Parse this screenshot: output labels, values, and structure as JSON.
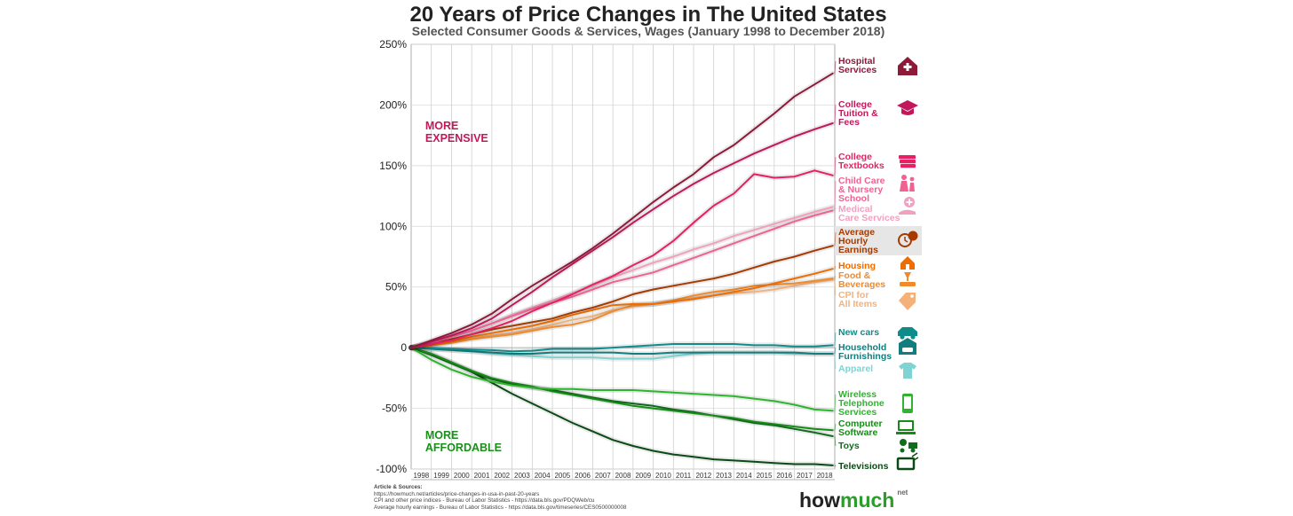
{
  "chart_data": {
    "type": "line",
    "title": "20 Years of Price Changes in The United States",
    "subtitle": "Selected Consumer Goods & Services, Wages (January 1998 to December 2018)",
    "xlabel": "",
    "ylabel": "",
    "x_ticks": [
      "1998",
      "1999",
      "2000",
      "2001",
      "2002",
      "2003",
      "2004",
      "2005",
      "2006",
      "2007",
      "2008",
      "2009",
      "2010",
      "2011",
      "2012",
      "2013",
      "2014",
      "2015",
      "2016",
      "2017",
      "2018"
    ],
    "x_range": [
      1998,
      2019
    ],
    "y_ticks": [
      {
        "value": 250,
        "label": "250%"
      },
      {
        "value": 200,
        "label": "200%"
      },
      {
        "value": 150,
        "label": "150%"
      },
      {
        "value": 100,
        "label": "100%"
      },
      {
        "value": 50,
        "label": "50%"
      },
      {
        "value": 0,
        "label": "0"
      },
      {
        "value": -50,
        "label": "-50%"
      },
      {
        "value": -100,
        "label": "-100%"
      }
    ],
    "ylim": [
      -100,
      250
    ],
    "grid": true,
    "annotations": [
      {
        "lines": [
          "MORE",
          "EXPENSIVE"
        ],
        "color": "#c2185b",
        "x": 1998.7,
        "y": 180
      },
      {
        "lines": [
          "MORE",
          "AFFORDABLE"
        ],
        "color": "#1a8f1a",
        "x": 1998.7,
        "y": -75
      }
    ],
    "series": [
      {
        "name": "Hospital Services",
        "label_lines": [
          "Hospital",
          "Services"
        ],
        "icon": "hospital-icon",
        "color": "#8e1a3a",
        "x": [
          1998,
          1999,
          2000,
          2001,
          2002,
          2003,
          2004,
          2005,
          2006,
          2007,
          2008,
          2009,
          2010,
          2011,
          2012,
          2013,
          2014,
          2015,
          2016,
          2017,
          2018,
          2018.9
        ],
        "values": [
          0,
          6,
          12,
          19,
          28,
          40,
          51,
          61,
          71,
          82,
          94,
          107,
          120,
          132,
          143,
          157,
          167,
          180,
          193,
          207,
          217,
          226
        ]
      },
      {
        "name": "College Tuition & Fees",
        "label_lines": [
          "College",
          "Tuition &",
          "Fees"
        ],
        "icon": "graduation-cap-icon",
        "color": "#c2185b",
        "x": [
          1998,
          1999,
          2000,
          2001,
          2002,
          2003,
          2004,
          2005,
          2006,
          2007,
          2008,
          2009,
          2010,
          2011,
          2012,
          2013,
          2014,
          2015,
          2016,
          2017,
          2018,
          2018.9
        ],
        "values": [
          0,
          5,
          10,
          16,
          24,
          35,
          46,
          58,
          69,
          80,
          91,
          103,
          114,
          125,
          135,
          144,
          152,
          160,
          167,
          174,
          180,
          185
        ]
      },
      {
        "name": "College Textbooks",
        "label_lines": [
          "College",
          "Textbooks"
        ],
        "icon": "books-icon",
        "color": "#e91e63",
        "x": [
          1998,
          1999,
          2000,
          2001,
          2002,
          2003,
          2004,
          2005,
          2006,
          2007,
          2008,
          2009,
          2010,
          2011,
          2012,
          2013,
          2014,
          2015,
          2016,
          2017,
          2018,
          2018.9
        ],
        "values": [
          0,
          3,
          6,
          11,
          16,
          22,
          30,
          37,
          44,
          52,
          59,
          68,
          76,
          88,
          103,
          117,
          127,
          143,
          140,
          141,
          146,
          142
        ]
      },
      {
        "name": "Child Care & Nursery School",
        "label_lines": [
          "Child Care",
          "& Nursery",
          "School"
        ],
        "icon": "family-icon",
        "color": "#f06292",
        "x": [
          1998,
          1999,
          2000,
          2001,
          2002,
          2003,
          2004,
          2005,
          2006,
          2007,
          2008,
          2009,
          2010,
          2011,
          2012,
          2013,
          2014,
          2015,
          2016,
          2017,
          2018,
          2018.9
        ],
        "values": [
          0,
          4,
          9,
          14,
          20,
          26,
          32,
          37,
          42,
          48,
          54,
          58,
          62,
          68,
          74,
          80,
          86,
          92,
          98,
          104,
          109,
          113
        ]
      },
      {
        "name": "Medical Care Services",
        "label_lines": [
          "Medical",
          "Care Services"
        ],
        "icon": "medical-hand-icon",
        "color": "#f2a0c0",
        "x": [
          1998,
          1999,
          2000,
          2001,
          2002,
          2003,
          2004,
          2005,
          2006,
          2007,
          2008,
          2009,
          2010,
          2011,
          2012,
          2013,
          2014,
          2015,
          2016,
          2017,
          2018,
          2018.9
        ],
        "values": [
          0,
          4,
          9,
          14,
          20,
          27,
          33,
          39,
          45,
          51,
          58,
          64,
          70,
          75,
          81,
          86,
          92,
          97,
          102,
          107,
          112,
          116
        ]
      },
      {
        "name": "Average Hourly Earnings",
        "label_lines": [
          "Average",
          "Hourly",
          "Earnings"
        ],
        "icon": "clock-dollar-icon",
        "color": "#a63a00",
        "x": [
          1998,
          1999,
          2000,
          2001,
          2002,
          2003,
          2004,
          2005,
          2006,
          2007,
          2008,
          2009,
          2010,
          2011,
          2012,
          2013,
          2014,
          2015,
          2016,
          2017,
          2018,
          2018.9
        ],
        "values": [
          0,
          3,
          7,
          11,
          15,
          18,
          21,
          24,
          29,
          33,
          38,
          44,
          48,
          51,
          54,
          57,
          61,
          66,
          71,
          75,
          80,
          84
        ]
      },
      {
        "name": "Housing",
        "label_lines": [
          "Housing"
        ],
        "icon": "house-icon",
        "color": "#ef6c00",
        "x": [
          1998,
          1999,
          2000,
          2001,
          2002,
          2003,
          2004,
          2005,
          2006,
          2007,
          2008,
          2009,
          2010,
          2011,
          2012,
          2013,
          2014,
          2015,
          2016,
          2017,
          2018,
          2018.9
        ],
        "values": [
          0,
          2,
          5,
          9,
          12,
          15,
          18,
          22,
          27,
          31,
          35,
          36,
          36,
          38,
          40,
          43,
          46,
          49,
          53,
          57,
          61,
          65
        ]
      },
      {
        "name": "Food & Beverages",
        "label_lines": [
          "Food &",
          "Beverages"
        ],
        "icon": "food-icon",
        "color": "#f08a2c",
        "x": [
          1998,
          1999,
          2000,
          2001,
          2002,
          2003,
          2004,
          2005,
          2006,
          2007,
          2008,
          2009,
          2010,
          2011,
          2012,
          2013,
          2014,
          2015,
          2016,
          2017,
          2018,
          2018.9
        ],
        "values": [
          0,
          2,
          4,
          7,
          9,
          11,
          14,
          17,
          19,
          23,
          30,
          35,
          36,
          39,
          43,
          46,
          48,
          51,
          52,
          53,
          55,
          57
        ]
      },
      {
        "name": "CPI for All Items",
        "label_lines": [
          "CPI for",
          "All Items"
        ],
        "icon": "price-tag-icon",
        "color": "#f4b27a",
        "x": [
          1998,
          1999,
          2000,
          2001,
          2002,
          2003,
          2004,
          2005,
          2006,
          2007,
          2008,
          2009,
          2010,
          2011,
          2012,
          2013,
          2014,
          2015,
          2016,
          2017,
          2018,
          2018.9
        ],
        "values": [
          0,
          2,
          5,
          8,
          10,
          12,
          15,
          19,
          23,
          26,
          31,
          34,
          36,
          38,
          41,
          43,
          45,
          46,
          48,
          51,
          54,
          56
        ]
      },
      {
        "name": "New cars",
        "label_lines": [
          "New cars"
        ],
        "icon": "car-icon",
        "color": "#0e8c8c",
        "x": [
          1998,
          1999,
          2000,
          2001,
          2002,
          2003,
          2004,
          2005,
          2006,
          2007,
          2008,
          2009,
          2010,
          2011,
          2012,
          2013,
          2014,
          2015,
          2016,
          2017,
          2018,
          2018.9
        ],
        "values": [
          0,
          -0.5,
          -1,
          -1.5,
          -2,
          -3,
          -2.5,
          -1,
          -1,
          -1,
          0,
          1,
          2,
          3,
          3,
          3,
          3,
          2,
          2,
          1,
          1,
          2
        ]
      },
      {
        "name": "Household Furnishings",
        "label_lines": [
          "Household",
          "Furnishings"
        ],
        "icon": "sofa-icon",
        "color": "#127d7d",
        "x": [
          1998,
          1999,
          2000,
          2001,
          2002,
          2003,
          2004,
          2005,
          2006,
          2007,
          2008,
          2009,
          2010,
          2011,
          2012,
          2013,
          2014,
          2015,
          2016,
          2017,
          2018,
          2018.9
        ],
        "values": [
          0,
          -1,
          -2,
          -3,
          -4,
          -5,
          -5,
          -4,
          -4,
          -4,
          -4,
          -5,
          -5,
          -4,
          -4,
          -4,
          -4,
          -4,
          -4,
          -4,
          -5,
          -5
        ]
      },
      {
        "name": "Apparel",
        "label_lines": [
          "Apparel"
        ],
        "icon": "shirt-icon",
        "color": "#7fd3d3",
        "x": [
          1998,
          1999,
          2000,
          2001,
          2002,
          2003,
          2004,
          2005,
          2006,
          2007,
          2008,
          2009,
          2010,
          2011,
          2012,
          2013,
          2014,
          2015,
          2016,
          2017,
          2018,
          2018.9
        ],
        "values": [
          0,
          -1,
          -2,
          -3,
          -5,
          -6,
          -7,
          -8,
          -8,
          -8,
          -9,
          -9,
          -9,
          -7,
          -5,
          -4,
          -4,
          -4,
          -4,
          -5,
          -5,
          -5
        ]
      },
      {
        "name": "Wireless Telephone Services",
        "label_lines": [
          "Wireless",
          "Telephone",
          "Services"
        ],
        "icon": "phone-icon",
        "color": "#2db52d",
        "x": [
          1998,
          1999,
          2000,
          2001,
          2002,
          2003,
          2004,
          2005,
          2006,
          2007,
          2008,
          2009,
          2010,
          2011,
          2012,
          2013,
          2014,
          2015,
          2016,
          2017,
          2018,
          2018.9
        ],
        "values": [
          0,
          -10,
          -18,
          -24,
          -28,
          -31,
          -33,
          -34,
          -34,
          -35,
          -35,
          -35,
          -36,
          -37,
          -38,
          -39,
          -40,
          -42,
          -44,
          -47,
          -51,
          -52
        ]
      },
      {
        "name": "Computer Software",
        "label_lines": [
          "Computer",
          "Software"
        ],
        "icon": "computer-icon",
        "color": "#168c16",
        "x": [
          1998,
          1999,
          2000,
          2001,
          2002,
          2003,
          2004,
          2005,
          2006,
          2007,
          2008,
          2009,
          2010,
          2011,
          2012,
          2013,
          2014,
          2015,
          2016,
          2017,
          2018,
          2018.9
        ],
        "values": [
          0,
          -5,
          -12,
          -19,
          -25,
          -29,
          -32,
          -36,
          -39,
          -42,
          -45,
          -48,
          -50,
          -52,
          -54,
          -56,
          -58,
          -61,
          -63,
          -65,
          -67,
          -68
        ]
      },
      {
        "name": "Toys",
        "label_lines": [
          "Toys"
        ],
        "icon": "toys-icon",
        "color": "#0f6e1c",
        "x": [
          1998,
          1999,
          2000,
          2001,
          2002,
          2003,
          2004,
          2005,
          2006,
          2007,
          2008,
          2009,
          2010,
          2011,
          2012,
          2013,
          2014,
          2015,
          2016,
          2017,
          2018,
          2018.9
        ],
        "values": [
          0,
          -6,
          -13,
          -20,
          -26,
          -30,
          -33,
          -35,
          -38,
          -41,
          -44,
          -46,
          -48,
          -51,
          -53,
          -56,
          -59,
          -62,
          -64,
          -67,
          -70,
          -73
        ]
      },
      {
        "name": "Televisions",
        "label_lines": [
          "Televisions"
        ],
        "icon": "tv-icon",
        "color": "#0a4a14",
        "x": [
          1998,
          1999,
          2000,
          2001,
          2002,
          2003,
          2004,
          2005,
          2006,
          2007,
          2008,
          2009,
          2010,
          2011,
          2012,
          2013,
          2014,
          2015,
          2016,
          2017,
          2018,
          2018.9
        ],
        "values": [
          0,
          -5,
          -12,
          -20,
          -29,
          -38,
          -46,
          -54,
          -62,
          -69,
          -76,
          -81,
          -85,
          -88,
          -90,
          -92,
          -93,
          -94,
          -95,
          -96,
          -96,
          -97
        ]
      }
    ]
  },
  "footer": {
    "sources_title": "Article & Sources:",
    "sources_lines": [
      "https://howmuch.net/articles/price-changes-in-usa-in-past-20-years",
      "CPI and other price indices - Bureau of Labor Statistics - https://data.bls.gov/PDQWeb/cu",
      "Average hourly earnings - Bureau of Labor Statistics - https://data.bls.gov/timeseries/CES0500000008"
    ],
    "brand_part1": "how",
    "brand_part2": "much",
    "brand_suffix": "net"
  }
}
